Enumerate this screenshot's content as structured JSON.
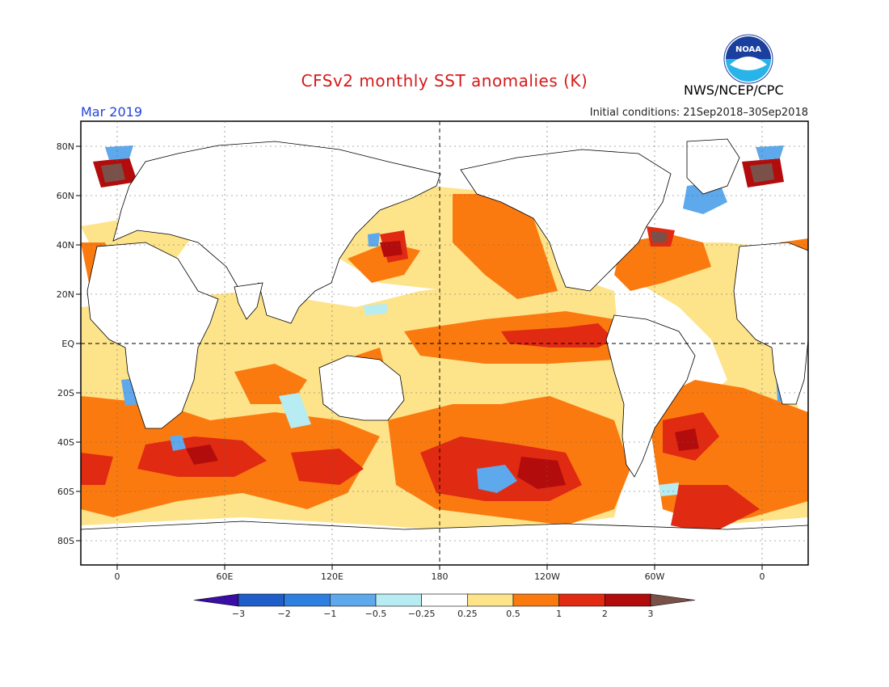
{
  "title": "CFSv2 monthly SST anomalies (K)",
  "period": "Mar 2019",
  "initial_conditions": "Initial conditions: 21Sep2018–30Sep2018",
  "agency": "NWS/NCEP/CPC",
  "logo_text": "NOAA",
  "lat_labels": [
    "80N",
    "60N",
    "40N",
    "20N",
    "EQ",
    "20S",
    "40S",
    "60S",
    "80S"
  ],
  "lon_labels": [
    "0",
    "60E",
    "120E",
    "180",
    "120W",
    "60W",
    "0"
  ],
  "colorbar": {
    "labels": [
      "−3",
      "−2",
      "−1",
      "−0.5",
      "−0.25",
      "0.25",
      "0.5",
      "1",
      "2",
      "3"
    ],
    "colors": [
      "#3a0ea6",
      "#1f5ec9",
      "#2f7fe0",
      "#5ea8ec",
      "#b6ecf2",
      "#ffffff",
      "#fde38a",
      "#fb7a0f",
      "#e02a12",
      "#b20c0c",
      "#7a5148"
    ]
  },
  "legend_colors": {
    "land": "#ffffff",
    "neutral": "#ffffff",
    "weak_warm": "#fde38a",
    "warm": "#fb7a0f",
    "strong_warm": "#e02a12",
    "very_warm": "#b20c0c",
    "extreme_warm": "#7a5148",
    "weak_cool": "#b6ecf2",
    "cool": "#5ea8ec"
  }
}
